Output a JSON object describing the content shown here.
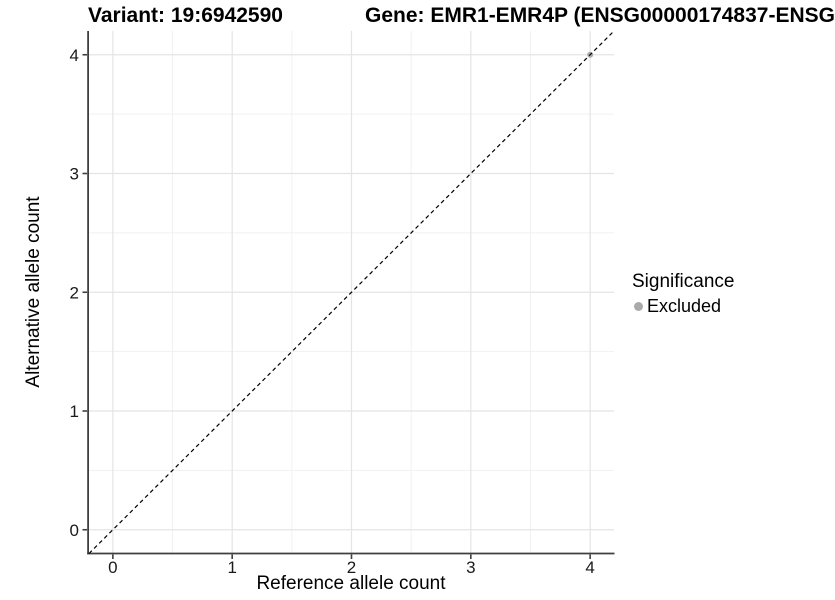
{
  "chart_data": {
    "type": "scatter",
    "title_left": "Variant: 19:6942590",
    "title_right": "Gene: EMR1-EMR4P (ENSG00000174837-ENSG",
    "xlabel": "Reference allele count",
    "ylabel": "Alternative allele count",
    "xlim": [
      -0.2,
      4.2
    ],
    "ylim": [
      -0.2,
      4.2
    ],
    "xticks": [
      0,
      1,
      2,
      3,
      4
    ],
    "yticks": [
      0,
      1,
      2,
      3,
      4
    ],
    "xticks_minor": [
      0.5,
      1.5,
      2.5,
      3.5
    ],
    "yticks_minor": [
      0.5,
      1.5,
      2.5,
      3.5
    ],
    "grid": "major+minor",
    "legend_position": "right",
    "legend_title": "Significance",
    "reference_line": {
      "kind": "identity y=x",
      "style": "dashed",
      "color": "#000000"
    },
    "series": [
      {
        "name": "Excluded",
        "color": "#aaaaaa",
        "points": [
          [
            4,
            4
          ]
        ]
      }
    ]
  },
  "legend": {
    "title": "Significance",
    "items": [
      {
        "label": "Excluded",
        "color": "#aaaaaa"
      }
    ]
  },
  "colors": {
    "background": "#ffffff",
    "grid_major": "#e4e4e4",
    "grid_minor": "#f1f1f1",
    "axis_line": "#3f3f3f",
    "text": "#000000"
  }
}
